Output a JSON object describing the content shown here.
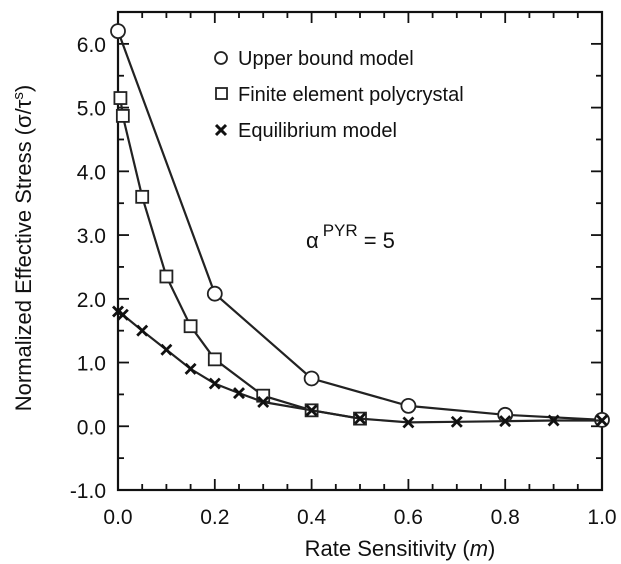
{
  "chart_data": {
    "type": "line",
    "xlabel_text": "Rate Sensitivity (",
    "xlabel_var": "m",
    "xlabel_close": ")",
    "ylabel_text": "Normalized Effective Stress (",
    "ylabel_sigma": "σ",
    "ylabel_slash": "/",
    "ylabel_tau": "τ",
    "ylabel_sup": "s",
    "ylabel_close": ")",
    "xlim": [
      0.0,
      1.0
    ],
    "ylim": [
      -1.0,
      6.5
    ],
    "xticks": [
      {
        "value": 0.0,
        "label": "0.0"
      },
      {
        "value": 0.2,
        "label": "0.2"
      },
      {
        "value": 0.4,
        "label": "0.4"
      },
      {
        "value": 0.6,
        "label": "0.6"
      },
      {
        "value": 0.8,
        "label": "0.8"
      },
      {
        "value": 1.0,
        "label": "1.0"
      }
    ],
    "yticks": [
      {
        "value": -1.0,
        "label": "-1.0"
      },
      {
        "value": 0.0,
        "label": "0.0"
      },
      {
        "value": 1.0,
        "label": "1.0"
      },
      {
        "value": 2.0,
        "label": "2.0"
      },
      {
        "value": 3.0,
        "label": "3.0"
      },
      {
        "value": 4.0,
        "label": "4.0"
      },
      {
        "value": 5.0,
        "label": "5.0"
      },
      {
        "value": 6.0,
        "label": "6.0"
      }
    ],
    "grid": false,
    "legend_position": "top-right",
    "annotation": {
      "base": "α",
      "sup": "PYR",
      "rest": "= 5"
    },
    "series": [
      {
        "name": "Upper bound model",
        "marker": "circle",
        "x": [
          0.0,
          0.2,
          0.4,
          0.6,
          0.8,
          1.0
        ],
        "y": [
          6.2,
          2.08,
          0.75,
          0.32,
          0.18,
          0.1
        ]
      },
      {
        "name": "Finite element polycrystal",
        "marker": "square",
        "x": [
          0.005,
          0.01,
          0.05,
          0.1,
          0.15,
          0.2,
          0.3,
          0.4,
          0.5
        ],
        "y": [
          5.15,
          4.87,
          3.6,
          2.35,
          1.57,
          1.05,
          0.48,
          0.25,
          0.12
        ]
      },
      {
        "name": "Equilibrium model",
        "marker": "x",
        "x": [
          0.0,
          0.01,
          0.05,
          0.1,
          0.15,
          0.2,
          0.25,
          0.3,
          0.4,
          0.5,
          0.6,
          0.7,
          0.8,
          0.9,
          1.0
        ],
        "y": [
          1.8,
          1.75,
          1.5,
          1.2,
          0.9,
          0.67,
          0.52,
          0.38,
          0.25,
          0.12,
          0.06,
          0.07,
          0.08,
          0.09,
          0.09
        ]
      }
    ]
  }
}
